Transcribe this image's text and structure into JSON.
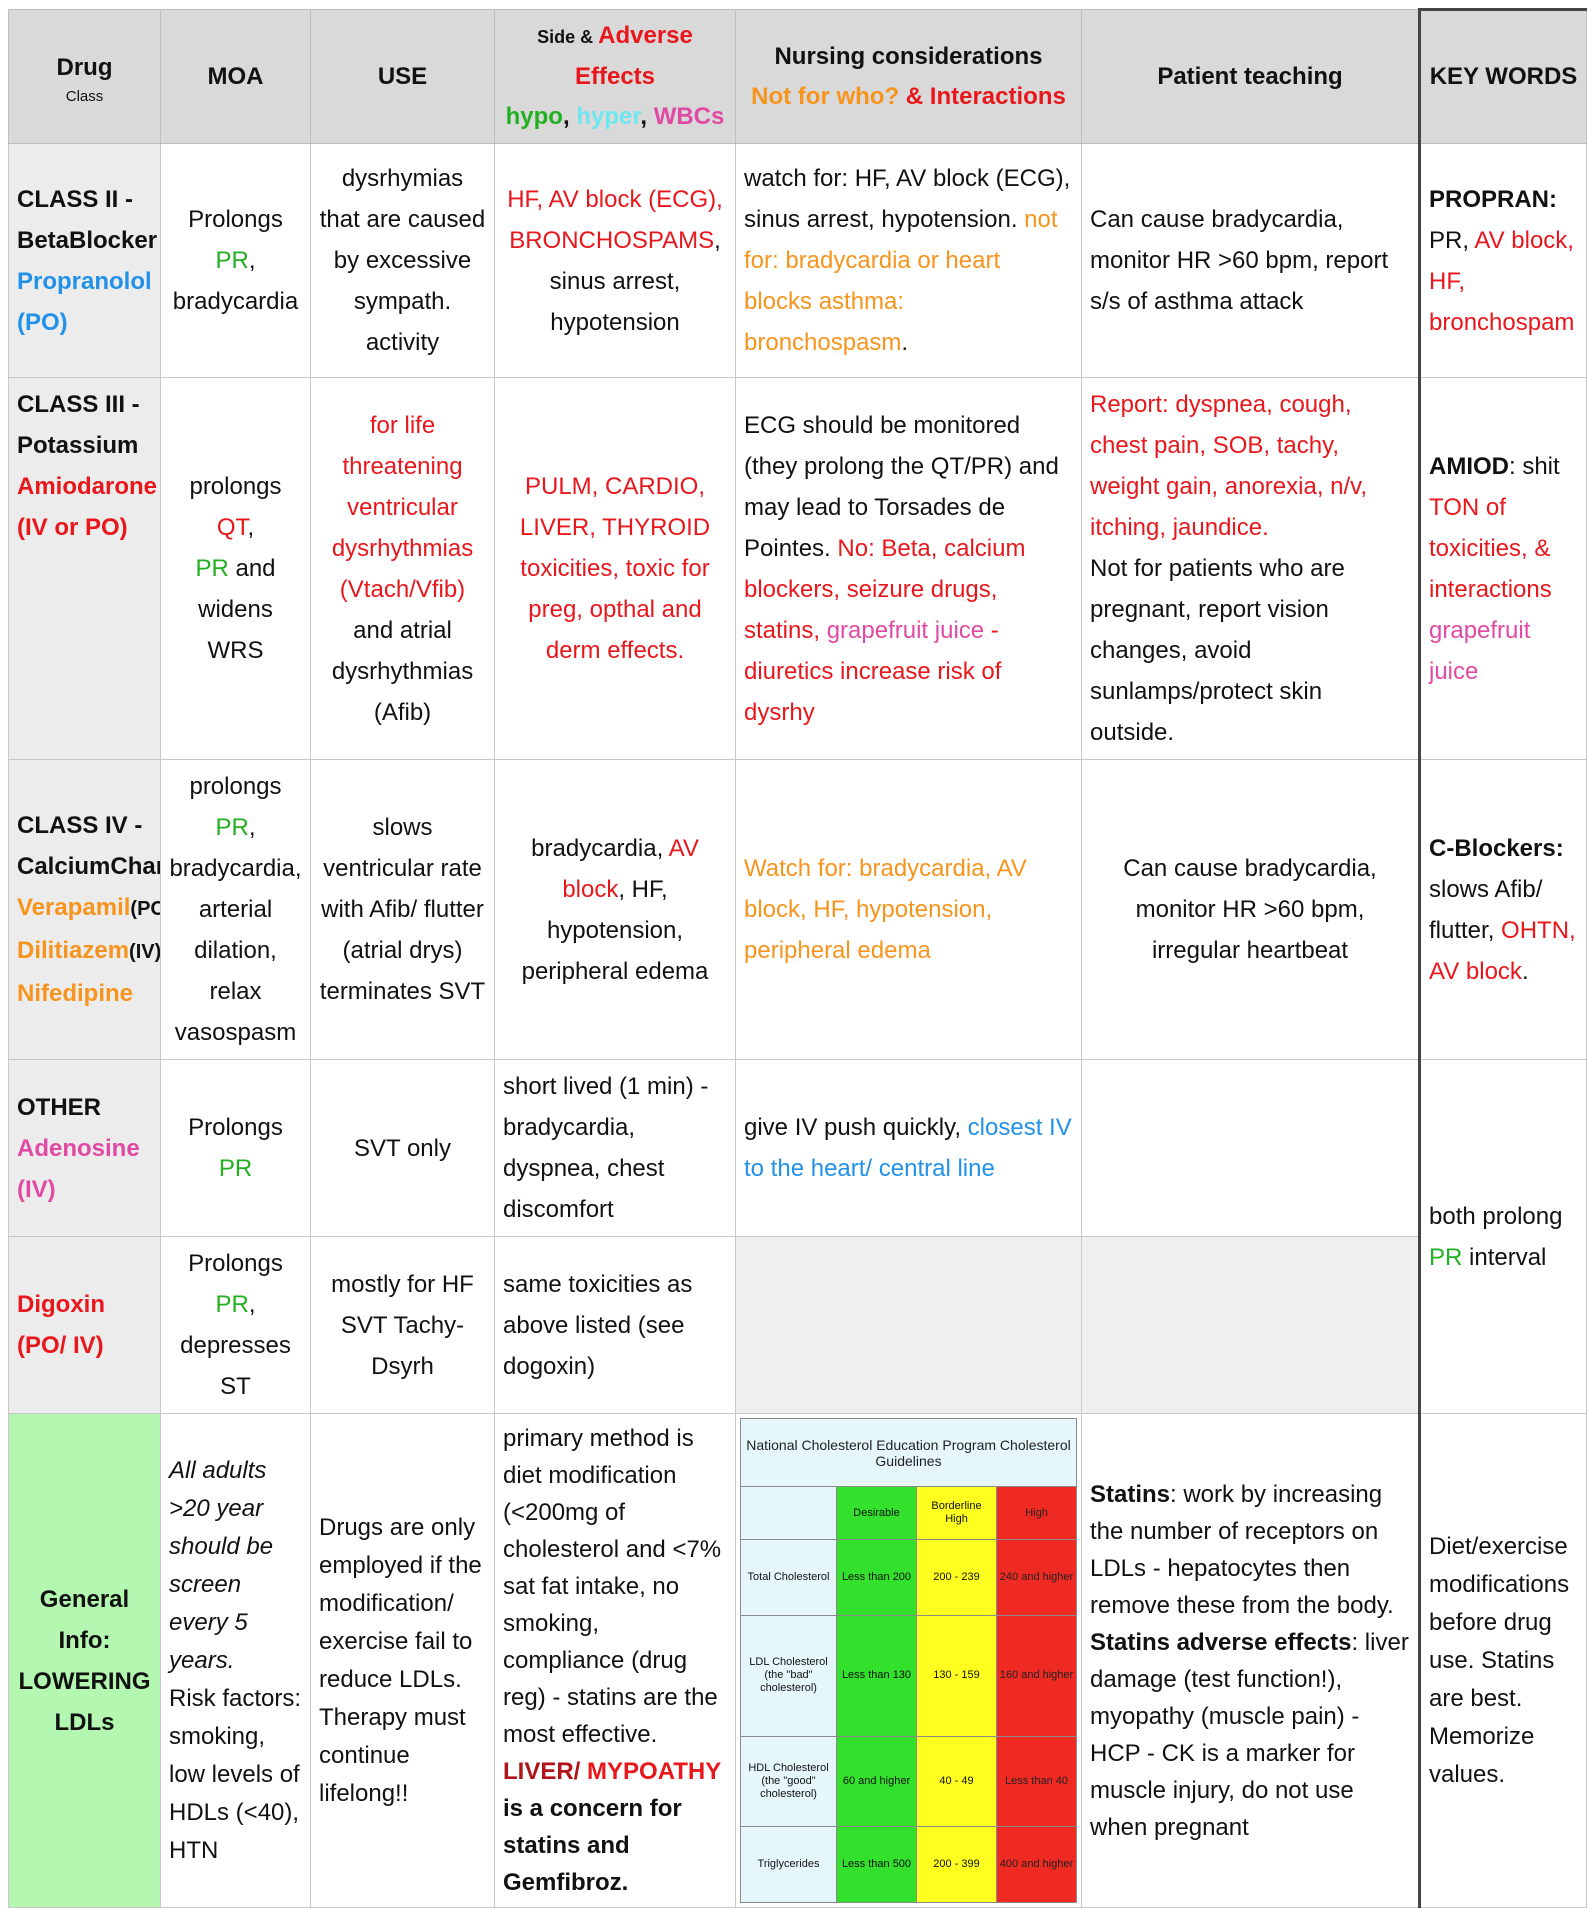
{
  "header": {
    "drug": "Drug",
    "drug_sub": "Class",
    "moa": "MOA",
    "use": "USE",
    "side_a": "Side & ",
    "side_b": "Adverse Effects",
    "side_hypo": "hypo",
    "side_comma1": ", ",
    "side_hyper": "hyper",
    "side_comma2": ", ",
    "side_wbc": "WBCs",
    "nursing": "Nursing considerations",
    "nursing_not": "Not for who?",
    "nursing_amp": " & Interactions",
    "teaching": "Patient teaching",
    "keywords": "KEY WORDS"
  },
  "colors": {
    "red": "#e8171c",
    "green": "#22b022",
    "blue": "#2291e8",
    "orange": "#f7941d",
    "pink": "#e14aa4",
    "header_bg": "#d9d9d9",
    "general_bg": "#b3f7b0"
  },
  "rows": {
    "class2": {
      "name1": "CLASS II -",
      "name2": "BetaBlocker",
      "drug": "Propranolol",
      "route": "(PO)",
      "moa_a": "Prolongs ",
      "moa_pr": "PR",
      "moa_b": ",",
      "moa_c": "bradycardia",
      "use": "dysrhymias that are caused by excessive sympath. activity",
      "side_red": "HF, AV block (ECG), BRONCHOSPAMS",
      "side_rest": ", sinus arrest, hypotension",
      "nursing_a": "watch for: HF, AV block (ECG), sinus arrest, hypotension. ",
      "nursing_b": "not for: bradycardia or heart blocks asthma: bronchospasm",
      "nursing_c": ".",
      "teaching": "Can cause bradycardia, monitor HR >60 bpm, report s/s of asthma attack",
      "key_a": "PROPRAN",
      "key_b": ":",
      "key_c": "PR, ",
      "key_d": "AV block, HF, bronchospam"
    },
    "class3": {
      "name1": "CLASS III -",
      "name2": "Potassium",
      "drug": "Amiodarone",
      "route": "(IV or PO)",
      "moa_a": "prolongs ",
      "moa_qt": "QT",
      "moa_b": ",",
      "moa_pr": "PR",
      "moa_c": " and widens WRS",
      "use_red": "for life threatening ventricular dysrhythmias (Vtach/Vfib)",
      "use_rest": "and atrial dysrhythmias (Afib)",
      "side": "PULM, CARDIO, LIVER, THYROID toxicities, toxic for preg, opthal and derm effects.",
      "nursing_a": "ECG should be monitored (they prolong the QT/PR) and may lead to Torsades de Pointes. ",
      "nursing_b": "No: Beta, calcium blockers, seizure drugs, statins, ",
      "nursing_c": "grapefruit juice",
      "nursing_d": " - diuretics increase risk of dysrhy",
      "teaching_red": "Report: dyspnea, cough, chest pain, SOB, tachy, weight gain, anorexia, n/v, itching, jaundice.",
      "teaching_rest": "Not for patients who are pregnant, report vision changes, avoid sunlamps/protect skin outside.",
      "key_a": "AMIOD",
      "key_b": ": shit ",
      "key_c": "TON of toxicities, & interactions ",
      "key_d": "grapefruit juice"
    },
    "class4": {
      "name1": "CLASS IV -",
      "name2": "CalciumChan",
      "drug1": "Verapamil",
      "route1": "(PO)",
      "drug2": "Dilitiazem",
      "route2": "(IV)",
      "drug3": "Nifedipine",
      "moa_a": "prolongs ",
      "moa_pr": "PR",
      "moa_b": ", bradycardia, arterial dilation, relax vasospasm",
      "use": "slows ventricular rate with Afib/ flutter (atrial drys) terminates SVT",
      "side_a": "bradycardia, ",
      "side_b": "AV block",
      "side_c": ", HF, hypotension, peripheral edema",
      "nursing": "Watch for: bradycardia, AV block, HF, hypotension, peripheral edema",
      "teaching": "Can cause bradycardia, monitor HR >60 bpm, irregular heartbeat",
      "key_a": "C-Blockers:",
      "key_b": "slows Afib/ flutter, ",
      "key_c": "OHTN, AV block",
      "key_d": "."
    },
    "other": {
      "name1": "OTHER",
      "drug": "Adenosine (IV)",
      "moa_a": "Prolongs ",
      "moa_pr": "PR",
      "use": "SVT only",
      "side": "short lived (1 min) - bradycardia, dyspnea, chest discomfort",
      "nursing_a": "give IV push quickly, ",
      "nursing_b": "closest IV to the heart/ central line",
      "key_a": "both prolong ",
      "key_pr": "PR",
      "key_b": " interval"
    },
    "digoxin": {
      "drug": "Digoxin (PO/ IV)",
      "moa_a": "Prolongs ",
      "moa_pr": "PR",
      "moa_b": ", depresses ST",
      "use": "mostly for HF SVT Tachy-Dsyrh",
      "side": "same toxicities as above listed (see dogoxin)"
    },
    "general": {
      "name": "General Info: LOWERING LDLs",
      "moa_i": "All adults >20 year should be screen every 5 years.",
      "moa_rest": "Risk factors: smoking, low levels of HDLs (<40), HTN",
      "use": "Drugs are only employed if the modification/ exercise fail to reduce LDLs. Therapy must continue lifelong!!",
      "side_a": "primary method is diet modification (<200mg of cholesterol and <7% sat fat intake, no smoking, compliance (drug reg) - statins are the most effective. ",
      "side_b": "LIVER/ ",
      "side_c": "MYPOATHY",
      "side_d": " is a concern for statins and Gemfibroz.",
      "teaching_a": "Statins",
      "teaching_b": ": work by increasing the number of receptors on LDLs - hepatocytes then remove these from the body.",
      "teaching_c": "Statins adverse effects",
      "teaching_d": ": liver damage (test function!), myopathy (muscle pain) - HCP - CK is a marker for muscle injury, do not use when pregnant",
      "key": "Diet/exercise modifications before drug use. Statins are best. Memorize values."
    }
  },
  "cholesterol": {
    "title": "National Cholesterol Education Program Cholesterol Guidelines",
    "cols": [
      "Desirable",
      "Borderline High",
      "High"
    ],
    "rows": [
      {
        "label": "Total Cholesterol",
        "v": [
          "Less than 200",
          "200 - 239",
          "240 and higher"
        ]
      },
      {
        "label": "LDL Cholesterol (the \"bad\" cholesterol)",
        "v": [
          "Less than 130",
          "130 - 159",
          "160 and higher"
        ]
      },
      {
        "label": "HDL Cholesterol (the \"good\" cholesterol)",
        "v": [
          "60 and higher",
          "40 - 49",
          "Less than 40"
        ]
      },
      {
        "label": "Triglycerides",
        "v": [
          "Less than 500",
          "200 - 399",
          "400 and higher"
        ]
      }
    ]
  }
}
